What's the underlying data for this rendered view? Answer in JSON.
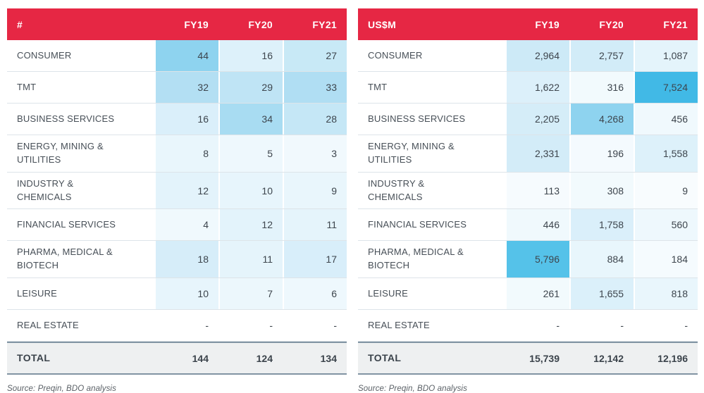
{
  "theme": {
    "header_red": "#e62744",
    "header_text": "#ffffff",
    "heat_max_color": "#41b9e6",
    "heat_min_color": "#f8fcfe",
    "total_bg": "#eef0f1",
    "total_border": "#8194a3",
    "row_divider": "#dde4e9"
  },
  "chart_data": {
    "type": "table",
    "subtype": "heatmap-table",
    "tables": [
      {
        "title": "#",
        "columns": [
          "FY19",
          "FY20",
          "FY21"
        ],
        "rows": [
          {
            "label": "CONSUMER",
            "values": [
              "44",
              "16",
              "27"
            ],
            "cell_colors": [
              "#8ed3ef",
              "#ddf1fa",
              "#c8e9f6"
            ]
          },
          {
            "label": "TMT",
            "values": [
              "32",
              "29",
              "33"
            ],
            "cell_colors": [
              "#b3dff3",
              "#bfe4f5",
              "#b0def3"
            ]
          },
          {
            "label": "BUSINESS SERVICES",
            "values": [
              "16",
              "34",
              "28"
            ],
            "cell_colors": [
              "#daeffa",
              "#a8dcf2",
              "#c5e7f6"
            ]
          },
          {
            "label": "ENERGY, MINING & UTILITIES",
            "values": [
              "8",
              "5",
              "3"
            ],
            "cell_colors": [
              "#e9f6fc",
              "#eef8fd",
              "#f1f9fd"
            ]
          },
          {
            "label": "INDUSTRY &\nCHEMICALS",
            "values": [
              "12",
              "10",
              "9"
            ],
            "cell_colors": [
              "#e3f3fb",
              "#e7f5fc",
              "#e9f6fc"
            ]
          },
          {
            "label": "FINANCIAL SERVICES",
            "values": [
              "4",
              "12",
              "11"
            ],
            "cell_colors": [
              "#f0f9fd",
              "#e3f3fb",
              "#e5f4fb"
            ]
          },
          {
            "label": "PHARMA, MEDICAL &\nBIOTECH",
            "values": [
              "18",
              "11",
              "17"
            ],
            "cell_colors": [
              "#d6edf9",
              "#e5f4fb",
              "#d8eefa"
            ]
          },
          {
            "label": "LEISURE",
            "values": [
              "10",
              "7",
              "6"
            ],
            "cell_colors": [
              "#e7f5fc",
              "#ecf7fc",
              "#eef8fd"
            ]
          },
          {
            "label": "REAL ESTATE",
            "values": [
              "-",
              "-",
              "-"
            ],
            "cell_colors": [
              "#ffffff",
              "#ffffff",
              "#ffffff"
            ]
          }
        ],
        "total": {
          "label": "TOTAL",
          "values": [
            "144",
            "124",
            "134"
          ]
        },
        "source": "Source: Preqin, BDO analysis"
      },
      {
        "title": "US$M",
        "columns": [
          "FY19",
          "FY20",
          "FY21"
        ],
        "rows": [
          {
            "label": "CONSUMER",
            "values": [
              "2,964",
              "2,757",
              "1,087"
            ],
            "cell_colors": [
              "#cdeaf7",
              "#d2ecf8",
              "#e4f4fb"
            ]
          },
          {
            "label": "TMT",
            "values": [
              "1,622",
              "316",
              "7,524"
            ],
            "cell_colors": [
              "#dcf0fa",
              "#f2fafd",
              "#41b9e6"
            ]
          },
          {
            "label": "BUSINESS SERVICES",
            "values": [
              "2,205",
              "4,268",
              "456"
            ],
            "cell_colors": [
              "#d5edf8",
              "#8ed3ef",
              "#f0f9fd"
            ]
          },
          {
            "label": "ENERGY, MINING & UTILITIES",
            "values": [
              "2,331",
              "196",
              "1,558"
            ],
            "cell_colors": [
              "#d3ecf8",
              "#f4fafe",
              "#ddf1fa"
            ]
          },
          {
            "label": "INDUSTRY &\nCHEMICALS",
            "values": [
              "113",
              "308",
              "9"
            ],
            "cell_colors": [
              "#f6fbfe",
              "#f2fafd",
              "#f8fcfe"
            ]
          },
          {
            "label": "FINANCIAL SERVICES",
            "values": [
              "446",
              "1,758",
              "560"
            ],
            "cell_colors": [
              "#f0f9fd",
              "#daeffa",
              "#eef8fd"
            ]
          },
          {
            "label": "PHARMA, MEDICAL &\nBIOTECH",
            "values": [
              "5,796",
              "884",
              "184"
            ],
            "cell_colors": [
              "#55c2e9",
              "#e8f6fc",
              "#f5fbfe"
            ]
          },
          {
            "label": "LEISURE",
            "values": [
              "261",
              "1,655",
              "818"
            ],
            "cell_colors": [
              "#f2fafd",
              "#dbf0fa",
              "#e9f6fc"
            ]
          },
          {
            "label": "REAL ESTATE",
            "values": [
              "-",
              "-",
              "-"
            ],
            "cell_colors": [
              "#ffffff",
              "#ffffff",
              "#ffffff"
            ]
          }
        ],
        "total": {
          "label": "TOTAL",
          "values": [
            "15,739",
            "12,142",
            "12,196"
          ]
        },
        "source": "Source: Preqin, BDO analysis"
      }
    ]
  }
}
